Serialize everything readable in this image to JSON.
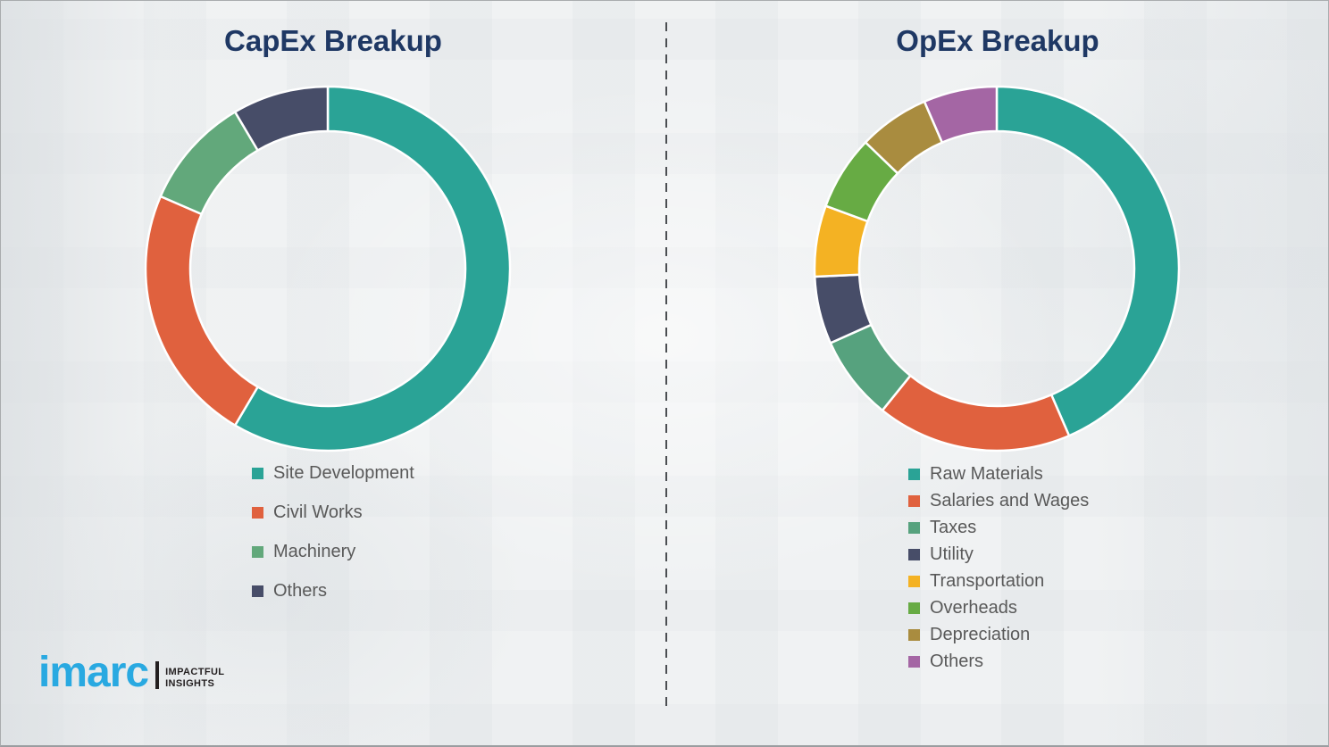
{
  "page": {
    "background_color": "#f0f2f3",
    "border_color": "#a9acae",
    "divider_color": "#4b4e52",
    "title_color": "#1f3864",
    "legend_text_color": "#595959",
    "slice_separator_color": "#ffffff"
  },
  "chart_data": [
    {
      "type": "pie",
      "variant": "donut",
      "title": "CapEx Breakup",
      "categories": [
        "Site Development",
        "Civil Works",
        "Machinery",
        "Others"
      ],
      "values": [
        58.5,
        23.0,
        10.0,
        8.5
      ],
      "unit": "percent",
      "colors": [
        "#2aa396",
        "#e0613e",
        "#62a87b",
        "#474d68"
      ],
      "start_angle_deg": 0,
      "direction": "clockwise",
      "outer_radius": 204,
      "inner_radius": 154,
      "legend_position": "below-left"
    },
    {
      "type": "pie",
      "variant": "donut",
      "title": "OpEx Breakup",
      "categories": [
        "Raw Materials",
        "Salaries and Wages",
        "Taxes",
        "Utility",
        "Transportation",
        "Overheads",
        "Depreciation",
        "Others"
      ],
      "values": [
        43.5,
        17.3,
        7.5,
        6.0,
        6.3,
        6.6,
        6.3,
        6.5
      ],
      "unit": "percent",
      "colors": [
        "#2aa396",
        "#e0613e",
        "#56a27e",
        "#474d68",
        "#f4b223",
        "#67ab44",
        "#a98c3f",
        "#a466a4"
      ],
      "start_angle_deg": 0,
      "direction": "clockwise",
      "outer_radius": 204,
      "inner_radius": 154,
      "legend_position": "below-left"
    }
  ],
  "logo": {
    "brand": "imarc",
    "tagline_line1": "IMPACTFUL",
    "tagline_line2": "INSIGHTS",
    "brand_color": "#29a9e1",
    "bar_color": "#231f20",
    "tagline_color": "#231f20"
  }
}
